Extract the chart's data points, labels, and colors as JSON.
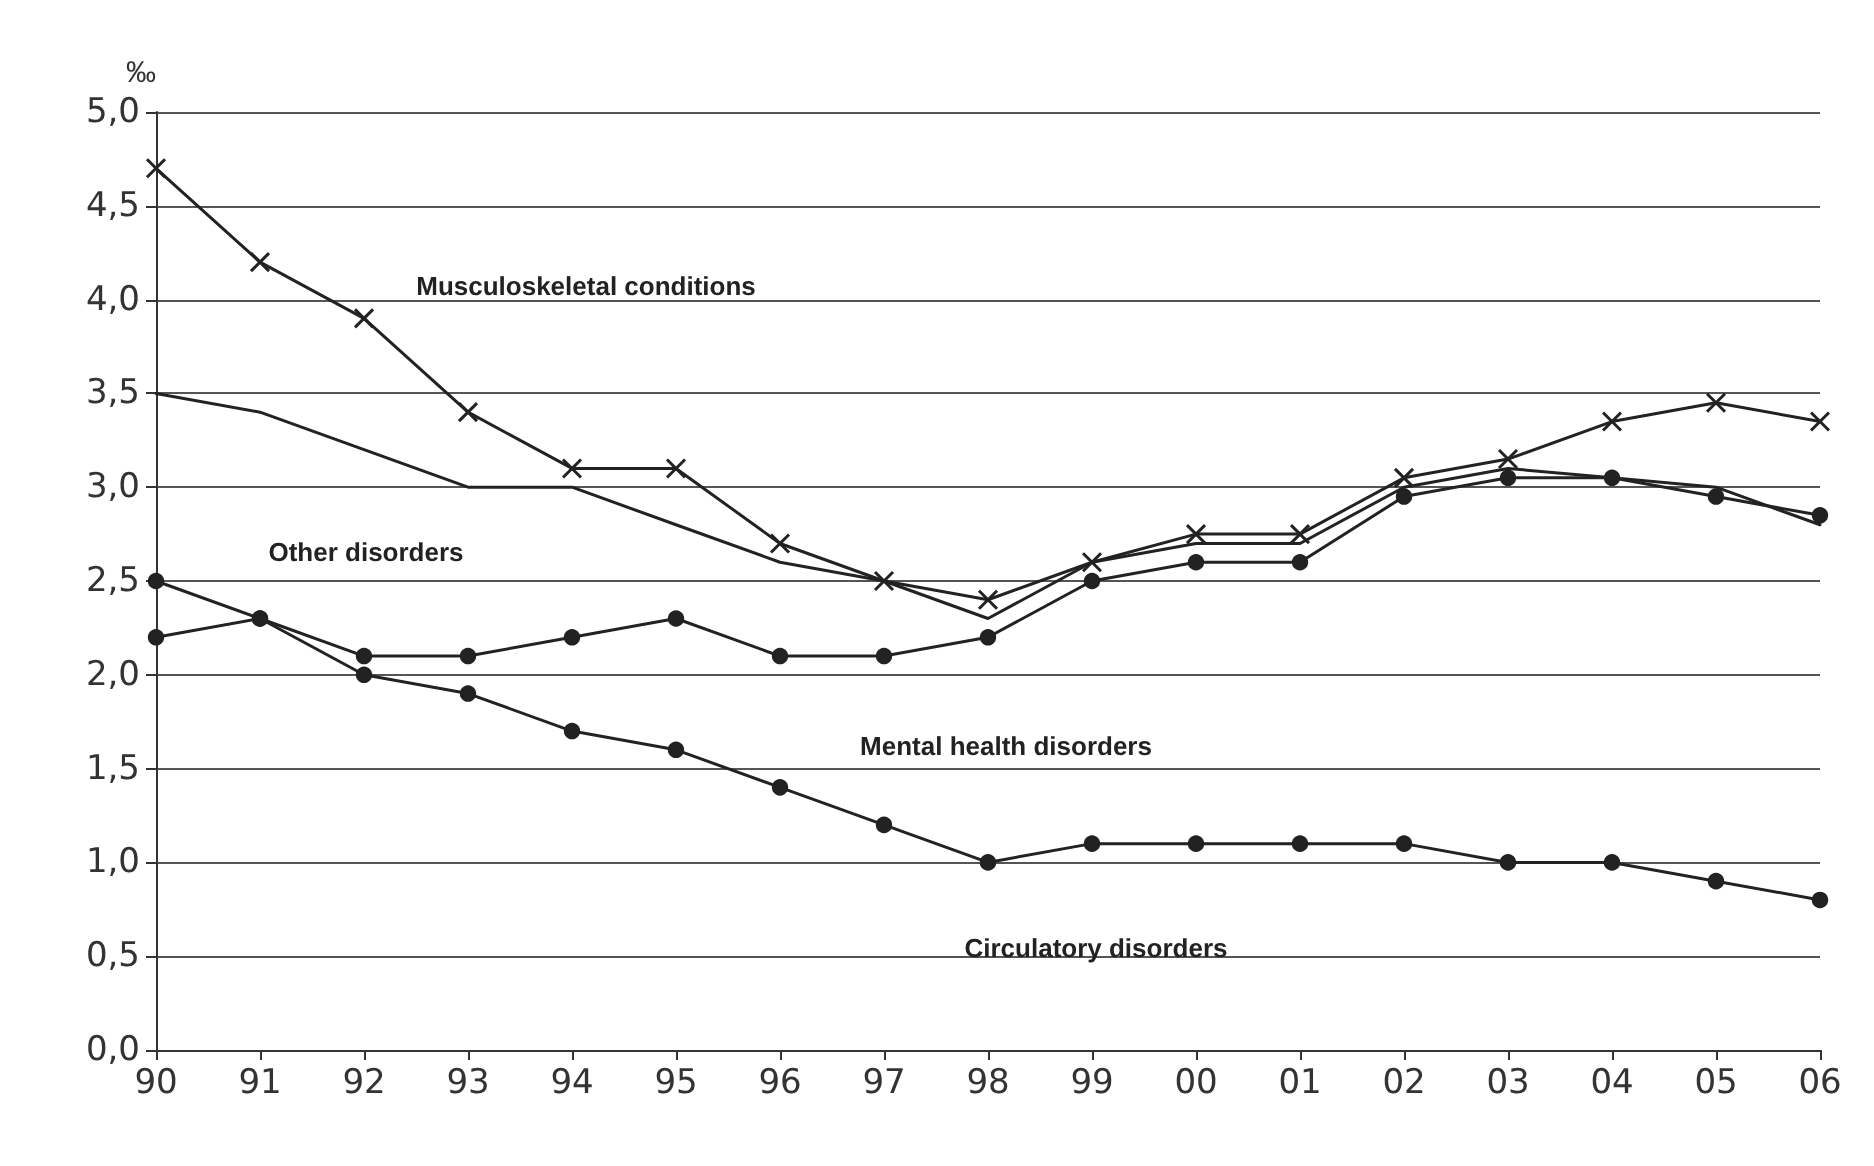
{
  "chart_data": {
    "type": "line",
    "ylabel": "‰",
    "categories": [
      "90",
      "91",
      "92",
      "93",
      "94",
      "95",
      "96",
      "97",
      "98",
      "99",
      "00",
      "01",
      "02",
      "03",
      "04",
      "05",
      "06"
    ],
    "series": [
      {
        "color": "#222222",
        "marker": "cross",
        "values": [
          4.7,
          4.2,
          3.9,
          3.4,
          3.1,
          3.1,
          2.7,
          2.5,
          2.4,
          2.6,
          2.75,
          2.75,
          3.05,
          3.15,
          3.35,
          3.45,
          3.35
        ]
      },
      {
        "color": "#222222",
        "marker": "none",
        "values": [
          3.5,
          3.4,
          3.2,
          3.0,
          3.0,
          2.8,
          2.6,
          2.5,
          2.3,
          2.6,
          2.7,
          2.7,
          3.0,
          3.1,
          3.05,
          3.0,
          2.8
        ]
      },
      {
        "color": "#222222",
        "marker": "circle",
        "values": [
          2.2,
          2.3,
          2.1,
          2.1,
          2.2,
          2.3,
          2.1,
          2.1,
          2.2,
          2.5,
          2.6,
          2.6,
          2.95,
          3.05,
          3.05,
          2.95,
          2.85
        ]
      },
      {
        "color": "#222222",
        "marker": "circle",
        "values": [
          2.5,
          2.3,
          2.0,
          1.9,
          1.7,
          1.6,
          1.4,
          1.2,
          1.0,
          1.1,
          1.1,
          1.1,
          1.1,
          1.0,
          1.0,
          0.9,
          0.8
        ]
      }
    ],
    "ylim": [
      0,
      5
    ],
    "yticks": [
      {
        "value": 0,
        "label": "0,0"
      },
      {
        "value": 0.5,
        "label": "0,5"
      },
      {
        "value": 1,
        "label": "1,0"
      },
      {
        "value": 1.5,
        "label": "1,5"
      },
      {
        "value": 2,
        "label": "2,0"
      },
      {
        "value": 2.5,
        "label": "2,5"
      },
      {
        "value": 3,
        "label": "3,0"
      },
      {
        "value": 3.5,
        "label": "3,5"
      },
      {
        "value": 4,
        "label": "4,0"
      },
      {
        "value": 4.5,
        "label": "4,5"
      },
      {
        "value": 5,
        "label": "5,0"
      }
    ],
    "grid": "y",
    "line_style": "solid",
    "annotations": [
      "Musculoskeletal conditions",
      "Other disorders",
      "Mental health disorders",
      "Circulatory disorders"
    ]
  }
}
